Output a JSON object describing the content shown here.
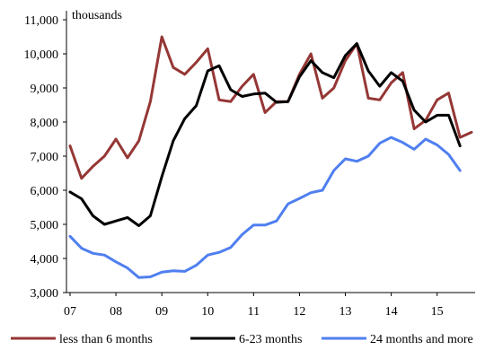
{
  "chart_data": {
    "type": "line",
    "unit_label": "thousands",
    "ylim": [
      3000,
      11000
    ],
    "yticks": [
      3000,
      4000,
      5000,
      6000,
      7000,
      8000,
      9000,
      10000,
      11000
    ],
    "ytick_labels": [
      "3,000",
      "4,000",
      "5,000",
      "6,000",
      "7,000",
      "8,000",
      "9,000",
      "10,000",
      "11,000"
    ],
    "xlim": [
      0,
      35
    ],
    "xticks": [
      0,
      4,
      8,
      12,
      16,
      20,
      24,
      28,
      32
    ],
    "xtick_labels": [
      "07",
      "08",
      "09",
      "10",
      "11",
      "12",
      "13",
      "14",
      "15"
    ],
    "grid": false,
    "legend_position": "bottom",
    "series": [
      {
        "name": "less than 6 months",
        "color": "#953735",
        "values": [
          7300,
          6350,
          6700,
          7000,
          7500,
          6950,
          7450,
          8600,
          10500,
          9600,
          9400,
          9750,
          10150,
          8650,
          8600,
          9050,
          9400,
          8280,
          8600,
          8600,
          9400,
          10000,
          8700,
          9000,
          9800,
          10300,
          8700,
          8650,
          9150,
          9450,
          7800,
          8050,
          8650,
          8850,
          7550,
          7700
        ]
      },
      {
        "name": "6-23 months",
        "color": "#000000",
        "values": [
          5950,
          5750,
          5250,
          5000,
          5100,
          5200,
          4960,
          5250,
          6400,
          7450,
          8100,
          8480,
          9500,
          9650,
          8950,
          8750,
          8820,
          8850,
          8580,
          8600,
          9320,
          9800,
          9450,
          9300,
          9950,
          10300,
          9500,
          9050,
          9450,
          9200,
          8350,
          8000,
          8200,
          8200,
          7300,
          null
        ]
      },
      {
        "name": "24 months and more",
        "color": "#4F7FF0",
        "values": [
          4650,
          4300,
          4150,
          4100,
          3900,
          3720,
          3440,
          3460,
          3600,
          3640,
          3620,
          3800,
          4100,
          4180,
          4320,
          4700,
          4980,
          4980,
          5100,
          5600,
          5760,
          5930,
          6000,
          6580,
          6920,
          6850,
          7000,
          7380,
          7550,
          7400,
          7200,
          7500,
          7330,
          7050,
          6580,
          null
        ]
      }
    ]
  }
}
